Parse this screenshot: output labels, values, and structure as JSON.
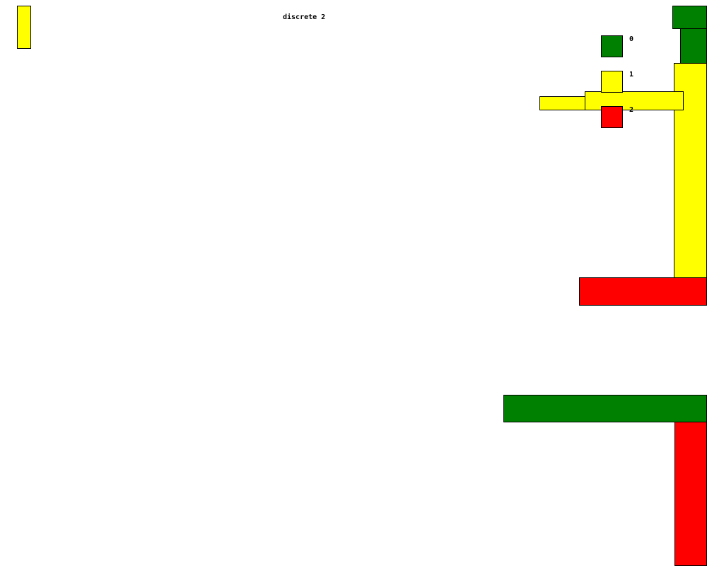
{
  "title": "discrete 2",
  "legend": [
    {
      "label": "0",
      "color": "#008000"
    },
    {
      "label": "1",
      "color": "#ffff00"
    },
    {
      "label": "2",
      "color": "#ff0000"
    }
  ],
  "colors": {
    "green": "#008000",
    "yellow": "#ffff00",
    "red": "#ff0000",
    "border": "#000000",
    "background": "#ffffff"
  }
}
